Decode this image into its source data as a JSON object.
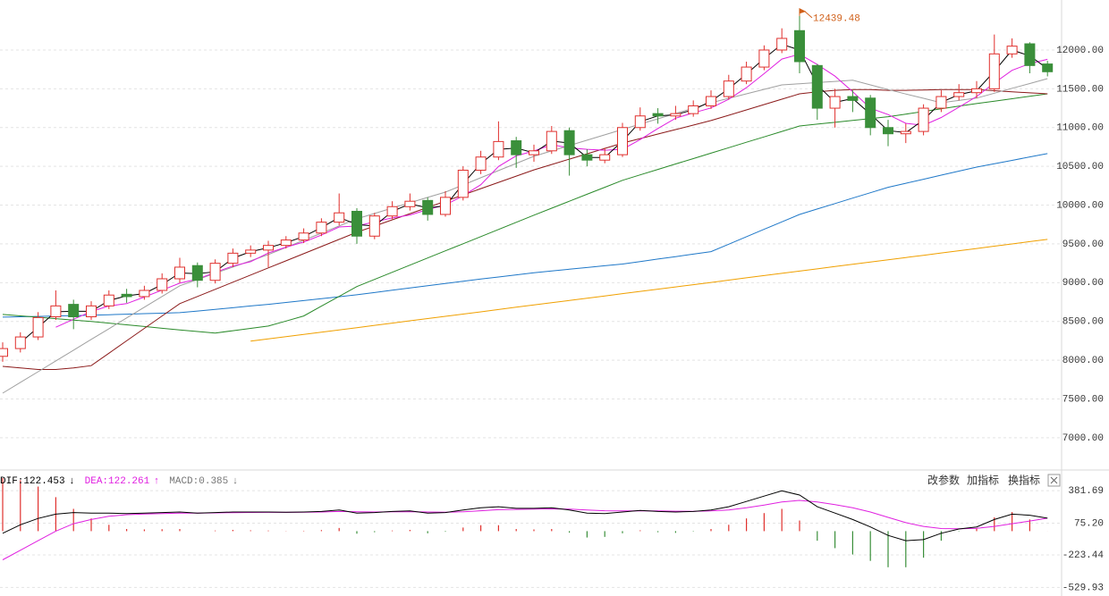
{
  "toolbar": [
    "改参数",
    "加指标",
    "换指标"
  ],
  "chart_data": [
    {
      "type": "candlestick",
      "up_color": "#e0302d",
      "down_color": "#3a8f3a",
      "open": [
        8050,
        8150,
        8300,
        8560,
        8720,
        8560,
        8700,
        8850,
        8820,
        8900,
        9050,
        9220,
        9030,
        9250,
        9380,
        9420,
        9480,
        9550,
        9640,
        9780,
        9920,
        9600,
        9860,
        9980,
        10060,
        9880,
        10100,
        10450,
        10620,
        10830,
        10650,
        10700,
        10960,
        10650,
        10580,
        10650,
        11000,
        11180,
        11150,
        11180,
        11280,
        11400,
        11600,
        11780,
        12000,
        12250,
        11800,
        11250,
        11400,
        11380,
        11000,
        10920,
        10950,
        11250,
        11400,
        11450,
        11500,
        11950,
        12080,
        11820
      ],
      "high": [
        8230,
        8360,
        8620,
        8900,
        8780,
        8760,
        8900,
        8920,
        8960,
        9120,
        9320,
        9260,
        9300,
        9440,
        9480,
        9540,
        9600,
        9700,
        9830,
        10150,
        9960,
        9900,
        10050,
        10150,
        10100,
        10180,
        10500,
        10700,
        11080,
        10880,
        10780,
        11020,
        11000,
        10720,
        10740,
        11060,
        11260,
        11250,
        11280,
        11350,
        11480,
        11680,
        11850,
        12060,
        12280,
        12439.48,
        11820,
        11500,
        11480,
        11420,
        11100,
        11050,
        11300,
        11480,
        11560,
        11600,
        12200,
        12150,
        12100,
        11860
      ],
      "low": [
        7980,
        8100,
        8260,
        8520,
        8400,
        8520,
        8660,
        8740,
        8780,
        8860,
        9000,
        8940,
        8990,
        9200,
        9330,
        9200,
        9440,
        9510,
        9600,
        9740,
        9500,
        9560,
        9820,
        9930,
        9800,
        9850,
        10060,
        10400,
        10580,
        10480,
        10560,
        10660,
        10380,
        10500,
        10540,
        10620,
        10960,
        11050,
        11100,
        11140,
        11240,
        11360,
        11560,
        11740,
        11960,
        11700,
        11100,
        11000,
        11200,
        10900,
        10760,
        10800,
        10900,
        11200,
        11350,
        11380,
        11460,
        11900,
        11700,
        11660
      ],
      "close": [
        8150,
        8300,
        8550,
        8700,
        8560,
        8700,
        8840,
        8820,
        8900,
        9050,
        9200,
        9030,
        9250,
        9380,
        9420,
        9480,
        9550,
        9640,
        9780,
        9900,
        9600,
        9860,
        9980,
        10050,
        9880,
        10100,
        10450,
        10620,
        10820,
        10650,
        10700,
        10950,
        10650,
        10580,
        10650,
        11000,
        11150,
        11150,
        11180,
        11280,
        11400,
        11600,
        11780,
        12000,
        12150,
        11850,
        11250,
        11400,
        11350,
        11000,
        10920,
        10950,
        11250,
        11400,
        11450,
        11500,
        11950,
        12050,
        11800,
        11720
      ],
      "max_label": "12439.48",
      "max_label_color": "#d0601a",
      "series": [
        {
          "color": "#f0a000",
          "values": [
            null,
            null,
            null,
            null,
            null,
            null,
            null,
            null,
            null,
            null,
            null,
            null,
            null,
            null,
            8245,
            8274,
            8303,
            8333,
            8362,
            8391,
            8420,
            8449,
            8478,
            8508,
            8537,
            8566,
            8595,
            8624,
            8653,
            8683,
            8712,
            8741,
            8770,
            8799,
            8828,
            8858,
            8887,
            8916,
            8945,
            8974,
            9003,
            9033,
            9062,
            9091,
            9120,
            9149,
            9178,
            9208,
            9237,
            9266,
            9295,
            9324,
            9353,
            9383,
            9412,
            9441,
            9470,
            9499,
            9529,
            9558
          ]
        },
        {
          "color": "#1f78c8",
          "values": [
            8555,
            8560,
            8565,
            8570,
            8575,
            8580,
            8587,
            8593,
            8600,
            8606,
            8613,
            8634,
            8656,
            8677,
            8699,
            8720,
            8745,
            8769,
            8794,
            8818,
            8843,
            8872,
            8902,
            8931,
            8961,
            8990,
            9018,
            9046,
            9073,
            9101,
            9128,
            9150,
            9173,
            9195,
            9218,
            9240,
            9272,
            9304,
            9336,
            9368,
            9400,
            9496,
            9592,
            9688,
            9784,
            9880,
            9950,
            10020,
            10090,
            10160,
            10230,
            10282,
            10334,
            10386,
            10438,
            10490,
            10534,
            10577,
            10621,
            10664
          ]
        },
        {
          "color": "#2a8a2a",
          "values": [
            8590,
            8572,
            8554,
            8536,
            8518,
            8500,
            8478,
            8456,
            8434,
            8412,
            8390,
            8370,
            8350,
            8380,
            8410,
            8440,
            8505,
            8570,
            8697,
            8823,
            8950,
            9042,
            9134,
            9226,
            9318,
            9410,
            9502,
            9594,
            9686,
            9778,
            9870,
            9960,
            10050,
            10140,
            10230,
            10320,
            10390,
            10460,
            10530,
            10600,
            10670,
            10740,
            10810,
            10880,
            10950,
            11020,
            11044,
            11068,
            11092,
            11116,
            11140,
            11174,
            11208,
            11242,
            11276,
            11310,
            11341,
            11372,
            11404,
            11435
          ]
        },
        {
          "color": "#8b1a1a",
          "values": [
            7920,
            7900,
            7880,
            7880,
            7900,
            7930,
            8090,
            8250,
            8410,
            8570,
            8730,
            8822,
            8914,
            9006,
            9098,
            9190,
            9282,
            9374,
            9466,
            9558,
            9650,
            9730,
            9810,
            9890,
            9970,
            10050,
            10131,
            10212,
            10293,
            10374,
            10455,
            10524,
            10593,
            10662,
            10731,
            10800,
            10858,
            10916,
            10974,
            11032,
            11090,
            11159,
            11228,
            11297,
            11366,
            11435,
            11460,
            11480,
            11490,
            11490,
            11480,
            11480,
            11485,
            11490,
            11490,
            11490,
            11475,
            11460,
            11448,
            11435
          ]
        },
        {
          "color": "#a0a0a0",
          "values": [
            7575,
            7714,
            7852,
            7991,
            8129,
            8268,
            8406,
            8545,
            8683,
            8822,
            8960,
            9040,
            9121,
            9201,
            9282,
            9362,
            9454,
            9546,
            9639,
            9731,
            9823,
            9892,
            9961,
            10030,
            10099,
            10168,
            10260,
            10353,
            10445,
            10538,
            10630,
            10699,
            10768,
            10837,
            10906,
            10975,
            11044,
            11113,
            11182,
            11251,
            11320,
            11378,
            11435,
            11493,
            11550,
            11565,
            11580,
            11595,
            11610,
            11550,
            11490,
            11433,
            11377,
            11320,
            11350,
            11380,
            11443,
            11506,
            11568,
            11631
          ]
        },
        {
          "color": "#e020e0",
          "values": [
            null,
            null,
            null,
            8425,
            8528,
            8628,
            8700,
            8730,
            8815,
            8903,
            8993,
            9045,
            9133,
            9215,
            9270,
            9383,
            9458,
            9523,
            9613,
            9718,
            9730,
            9785,
            9835,
            9873,
            9943,
            10003,
            10120,
            10263,
            10498,
            10635,
            10698,
            10780,
            10738,
            10720,
            10708,
            10720,
            10845,
            10988,
            11120,
            11190,
            11253,
            11365,
            11515,
            11695,
            11883,
            11945,
            11813,
            11663,
            11463,
            11250,
            11168,
            11055,
            11030,
            11130,
            11263,
            11400,
            11575,
            11738,
            11825,
            11880
          ]
        },
        {
          "color": "#000000",
          "values": [
            null,
            8225,
            8425,
            8625,
            8630,
            8630,
            8770,
            8830,
            8860,
            8975,
            9125,
            9115,
            9140,
            9315,
            9400,
            9450,
            9515,
            9595,
            9710,
            9840,
            9750,
            9730,
            9920,
            10015,
            9965,
            9990,
            10275,
            10535,
            10720,
            10735,
            10675,
            10825,
            10800,
            10615,
            10615,
            10825,
            11075,
            11150,
            11165,
            11230,
            11340,
            11500,
            11690,
            11890,
            12075,
            12000,
            11550,
            11325,
            11375,
            11175,
            10960,
            10935,
            11100,
            11325,
            11425,
            11475,
            11725,
            12000,
            11925,
            11760
          ]
        }
      ],
      "ylim": [
        6630,
        12645
      ],
      "yticks": [
        {
          "value": 7000,
          "label": "7000.00"
        },
        {
          "value": 7500,
          "label": "7500.00"
        },
        {
          "value": 8000,
          "label": "8000.00"
        },
        {
          "value": 8500,
          "label": "8500.00"
        },
        {
          "value": 9000,
          "label": "9000.00"
        },
        {
          "value": 9500,
          "label": "9500.00"
        },
        {
          "value": 10000,
          "label": "10000.00"
        },
        {
          "value": 10500,
          "label": "10500.00"
        },
        {
          "value": 11000,
          "label": "11000.00"
        },
        {
          "value": 11500,
          "label": "11500.00"
        },
        {
          "value": 12000,
          "label": "12000.00"
        }
      ],
      "grid": true
    },
    {
      "type": "macd",
      "readouts": [
        {
          "label": "DIF:122.453",
          "arrow": "↓",
          "color": "#000000"
        },
        {
          "label": "DEA:122.261",
          "arrow": "↑",
          "color": "#e020e0"
        },
        {
          "label": "MACD:0.385",
          "arrow": "↓",
          "color": "#777777"
        }
      ],
      "up_color": "#e0302d",
      "down_color": "#3a8f3a",
      "bars": [
        500,
        480,
        420,
        320,
        210,
        120,
        60,
        20,
        16,
        18,
        20,
        0,
        6,
        12,
        8,
        6,
        2,
        4,
        10,
        30,
        -24,
        -10,
        6,
        12,
        -20,
        -6,
        34,
        56,
        56,
        20,
        16,
        20,
        -14,
        -60,
        -54,
        -20,
        8,
        -10,
        -16,
        -4,
        20,
        60,
        120,
        170,
        210,
        100,
        -90,
        -160,
        -220,
        -280,
        -340,
        -340,
        -250,
        -90,
        -4,
        28,
        130,
        180,
        110,
        0.385
      ],
      "series": [
        {
          "color": "#e020e0",
          "values": [
            -270,
            -180,
            -90,
            0,
            70,
            110,
            140,
            155,
            162,
            166,
            170,
            170,
            172,
            174,
            176,
            177,
            177,
            178,
            180,
            185,
            182,
            180,
            182,
            184,
            180,
            178,
            183,
            192,
            202,
            205,
            207,
            210,
            207,
            200,
            192,
            190,
            191,
            190,
            188,
            187,
            190,
            200,
            220,
            245,
            275,
            290,
            275,
            250,
            220,
            180,
            130,
            80,
            45,
            25,
            22,
            26,
            45,
            70,
            95,
            122.261
          ]
        },
        {
          "color": "#000000",
          "values": [
            -20,
            60,
            120,
            160,
            175,
            170,
            170,
            165,
            170,
            175,
            180,
            170,
            175,
            180,
            180,
            180,
            178,
            180,
            185,
            200,
            170,
            175,
            185,
            190,
            170,
            175,
            200,
            220,
            230,
            215,
            215,
            220,
            200,
            170,
            165,
            180,
            195,
            185,
            180,
            185,
            200,
            230,
            280,
            330,
            380,
            340,
            230,
            170,
            110,
            40,
            -40,
            -90,
            -80,
            -20,
            20,
            40,
            110,
            160,
            150,
            122.453
          ]
        }
      ],
      "ylim": [
        -594,
        559
      ],
      "yticks": [
        381.69,
        {
          "value": 75.2,
          "label": "75.20"
        },
        -223.44,
        -529.93
      ],
      "grid": true
    }
  ]
}
